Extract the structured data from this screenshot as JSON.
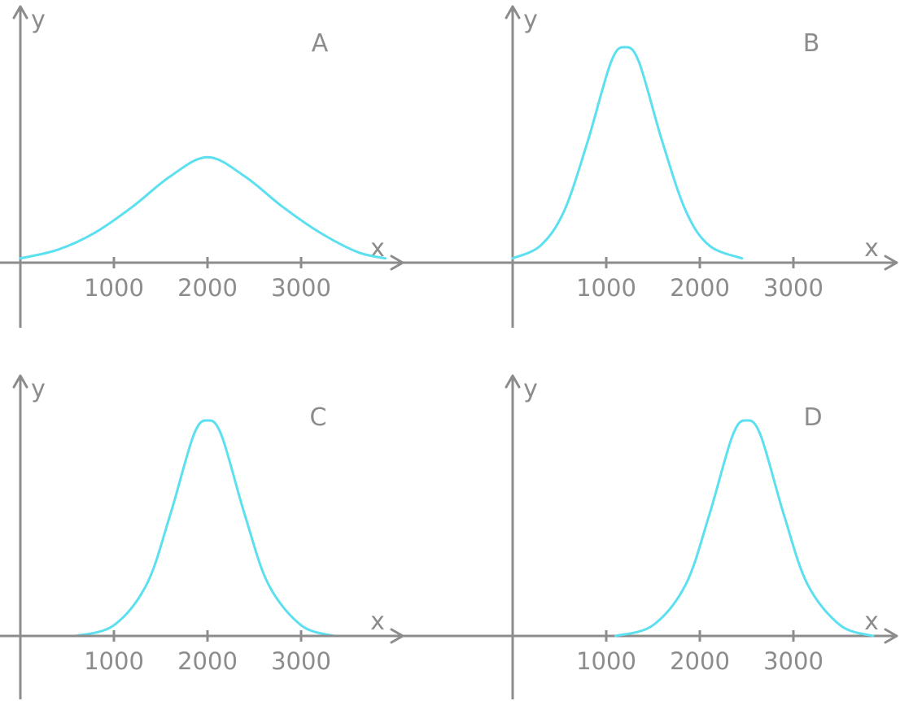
{
  "colors": {
    "axis": "#8c8c8c",
    "curve": "#5ce0f0"
  },
  "chart_data": [
    {
      "type": "line",
      "panel_label": "A",
      "xlabel": "x",
      "ylabel": "y",
      "xticks": [
        1000,
        2000,
        3000
      ],
      "xlim": [
        0,
        4000
      ],
      "ylim": [
        0,
        1
      ],
      "series": [
        {
          "x": [
            0,
            400,
            800,
            1200,
            1600,
            2000,
            2400,
            2800,
            3200,
            3600,
            3900
          ],
          "values": [
            0.02,
            0.06,
            0.14,
            0.26,
            0.4,
            0.49,
            0.4,
            0.26,
            0.14,
            0.05,
            0.02
          ]
        }
      ]
    },
    {
      "type": "line",
      "panel_label": "B",
      "xlabel": "x",
      "ylabel": "y",
      "xticks": [
        1000,
        2000,
        3000
      ],
      "xlim": [
        0,
        4000
      ],
      "ylim": [
        0,
        1
      ],
      "series": [
        {
          "x": [
            0,
            300,
            550,
            800,
            1050,
            1200,
            1350,
            1600,
            1850,
            2100,
            2450
          ],
          "values": [
            0.02,
            0.08,
            0.24,
            0.56,
            0.93,
            1.0,
            0.93,
            0.56,
            0.24,
            0.08,
            0.02
          ]
        }
      ]
    },
    {
      "type": "line",
      "panel_label": "C",
      "xlabel": "x",
      "ylabel": "y",
      "xticks": [
        1000,
        2000,
        3000
      ],
      "xlim": [
        0,
        4000
      ],
      "ylim": [
        0,
        1
      ],
      "series": [
        {
          "x": [
            600,
            1000,
            1350,
            1600,
            1850,
            2000,
            2150,
            2400,
            2650,
            3000,
            3350
          ],
          "values": [
            0.0,
            0.05,
            0.24,
            0.56,
            0.93,
            1.0,
            0.93,
            0.56,
            0.24,
            0.05,
            0.0
          ]
        }
      ]
    },
    {
      "type": "line",
      "panel_label": "D",
      "xlabel": "x",
      "ylabel": "y",
      "xticks": [
        1000,
        2000,
        3000
      ],
      "xlim": [
        0,
        4000
      ],
      "ylim": [
        0,
        1
      ],
      "series": [
        {
          "x": [
            1100,
            1500,
            1850,
            2100,
            2350,
            2500,
            2650,
            2900,
            3150,
            3500,
            3850
          ],
          "values": [
            0.0,
            0.05,
            0.24,
            0.56,
            0.93,
            1.0,
            0.93,
            0.56,
            0.24,
            0.05,
            0.0
          ]
        }
      ]
    }
  ]
}
